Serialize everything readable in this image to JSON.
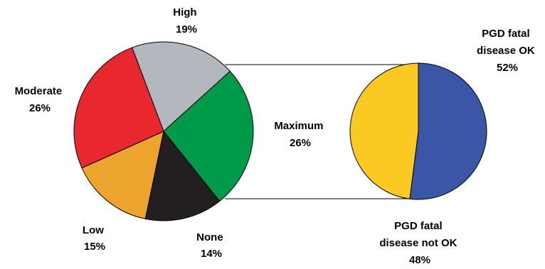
{
  "chart_data": [
    {
      "type": "pie",
      "slices": [
        {
          "label": "High",
          "value_label": "19%",
          "value": 19,
          "color": "#b3b8bf"
        },
        {
          "label": "Maximum",
          "value_label": "26%",
          "value": 26,
          "color": "#009b4a"
        },
        {
          "label": "None",
          "value_label": "14%",
          "value": 14,
          "color": "#231f20"
        },
        {
          "label": "Low",
          "value_label": "15%",
          "value": 15,
          "color": "#eda42d"
        },
        {
          "label": "Moderate",
          "value_label": "26%",
          "value": 26,
          "color": "#e8282e"
        }
      ]
    },
    {
      "type": "pie",
      "slices": [
        {
          "label": [
            "PGD fatal",
            "disease OK"
          ],
          "value_label": "52%",
          "value": 52,
          "color": "#3b56a6"
        },
        {
          "label": [
            "PGD fatal",
            "disease not OK"
          ],
          "value_label": "48%",
          "value": 48,
          "color": "#fbca22"
        }
      ]
    }
  ]
}
